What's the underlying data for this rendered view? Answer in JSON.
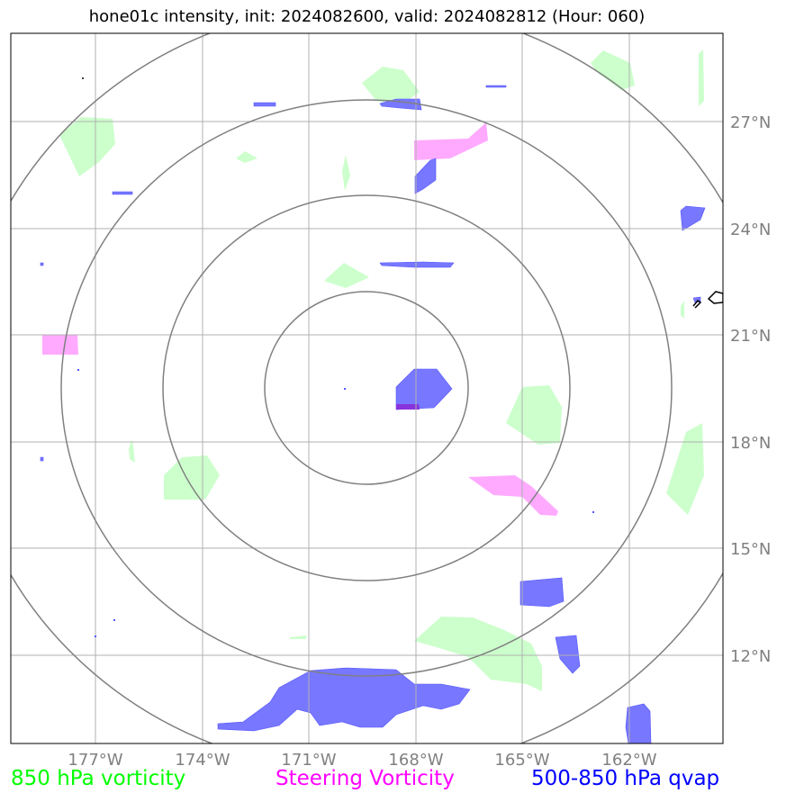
{
  "title": "hone01c intensity, init: 2024082600, valid: 2024082812 (Hour: 060)",
  "map": {
    "lat_labels": [
      "27°N",
      "24°N",
      "21°N",
      "18°N",
      "15°N",
      "12°N"
    ],
    "lon_labels": [
      "177°W",
      "174°W",
      "171°W",
      "168°W",
      "165°W",
      "162°W"
    ],
    "range_rings": 4,
    "colors": {
      "vort850": "#ccffcc",
      "steering": "#ffaaff",
      "qvap": "#7777ff",
      "grid": "#b0b0b0",
      "rings": "#808080"
    }
  },
  "legend": {
    "vort850": "850 hPa vorticity",
    "steering": "Steering Vorticity",
    "qvap": "500-850 hPa qvap"
  }
}
